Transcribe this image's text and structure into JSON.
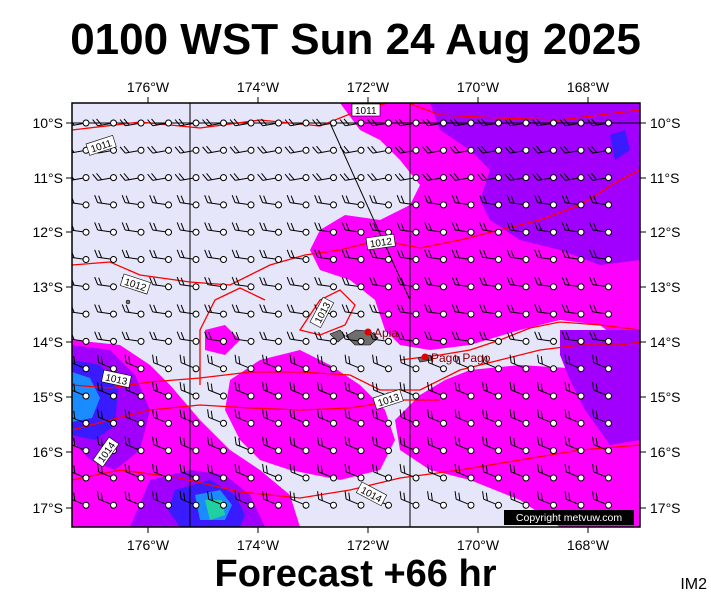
{
  "header": {
    "title": "0100 WST Sun 24 Aug 2025"
  },
  "footer": {
    "forecast": "Forecast +66 hr",
    "code": "IM2"
  },
  "map": {
    "longitude_labels": [
      "176°W",
      "174°W",
      "172°W",
      "170°W",
      "168°W"
    ],
    "latitude_labels": [
      "10°S",
      "11°S",
      "12°S",
      "13°S",
      "14°S",
      "15°S",
      "16°S",
      "17°S"
    ],
    "place_labels": [
      "Apia",
      "Pago Pago"
    ],
    "isobar_labels": [
      "1011",
      "1011",
      "1012",
      "1012",
      "1013",
      "1013",
      "1013",
      "1014",
      "1014"
    ],
    "copyright": "Copyright metvuw.com",
    "colors": {
      "background_clear": "#e6e6fa",
      "rain_light": "#ff00ff",
      "rain_moderate": "#a100ff",
      "rain_heavy": "#3a1bff",
      "isobar": "#ff0000",
      "land": "#6e6e6e"
    }
  }
}
